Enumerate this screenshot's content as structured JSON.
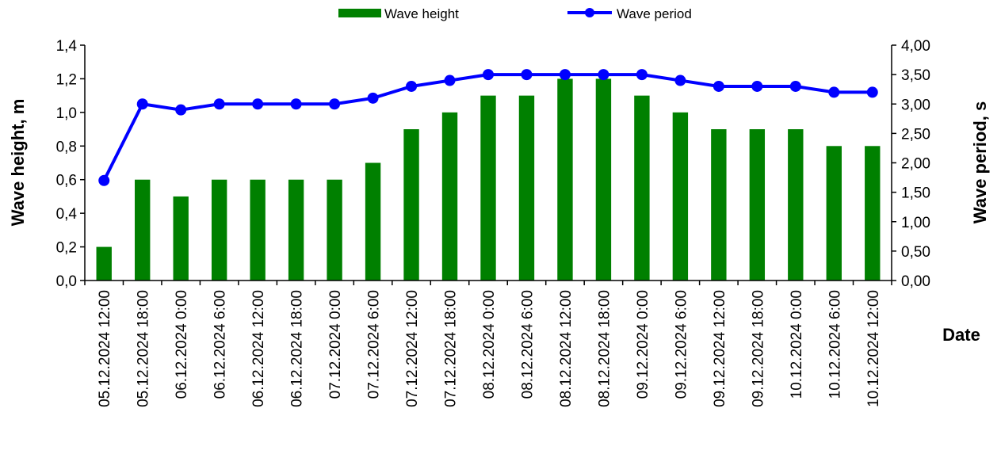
{
  "chart_data": {
    "type": "bar",
    "categories": [
      "05.12.2024 12:00",
      "05.12.2024 18:00",
      "06.12.2024 0:00",
      "06.12.2024 6:00",
      "06.12.2024 12:00",
      "06.12.2024 18:00",
      "07.12.2024 0:00",
      "07.12.2024 6:00",
      "07.12.2024 12:00",
      "07.12.2024 18:00",
      "08.12.2024 0:00",
      "08.12.2024 6:00",
      "08.12.2024 12:00",
      "08.12.2024 18:00",
      "09.12.2024 0:00",
      "09.12.2024 6:00",
      "09.12.2024 12:00",
      "09.12.2024 18:00",
      "10.12.2024 0:00",
      "10.12.2024 6:00",
      "10.12.2024 12:00"
    ],
    "series": [
      {
        "name": "Wave height",
        "type": "bar",
        "axis": "left",
        "color": "#008000",
        "values": [
          0.2,
          0.6,
          0.5,
          0.6,
          0.6,
          0.6,
          0.6,
          0.7,
          0.9,
          1.0,
          1.1,
          1.1,
          1.2,
          1.2,
          1.1,
          1.0,
          0.9,
          0.9,
          0.9,
          0.8,
          0.8
        ]
      },
      {
        "name": "Wave period",
        "type": "line",
        "axis": "right",
        "color": "#0000FF",
        "values": [
          1.7,
          3.0,
          2.9,
          3.0,
          3.0,
          3.0,
          3.0,
          3.1,
          3.3,
          3.4,
          3.5,
          3.5,
          3.5,
          3.5,
          3.5,
          3.4,
          3.3,
          3.3,
          3.3,
          3.2,
          3.2
        ]
      }
    ],
    "xlabel": "Date",
    "ylabel": "Wave height, m",
    "y2label": "Wave period, s",
    "ylim": [
      0,
      1.4
    ],
    "y2lim": [
      0,
      4.0
    ],
    "yticks": [
      "0,0",
      "0,2",
      "0,4",
      "0,6",
      "0,8",
      "1,0",
      "1,2",
      "1,4"
    ],
    "y2ticks": [
      "0,00",
      "0,50",
      "1,00",
      "1,50",
      "2,00",
      "2,50",
      "3,00",
      "3,50",
      "4,00"
    ],
    "grid": false,
    "legend_position": "top-center"
  }
}
